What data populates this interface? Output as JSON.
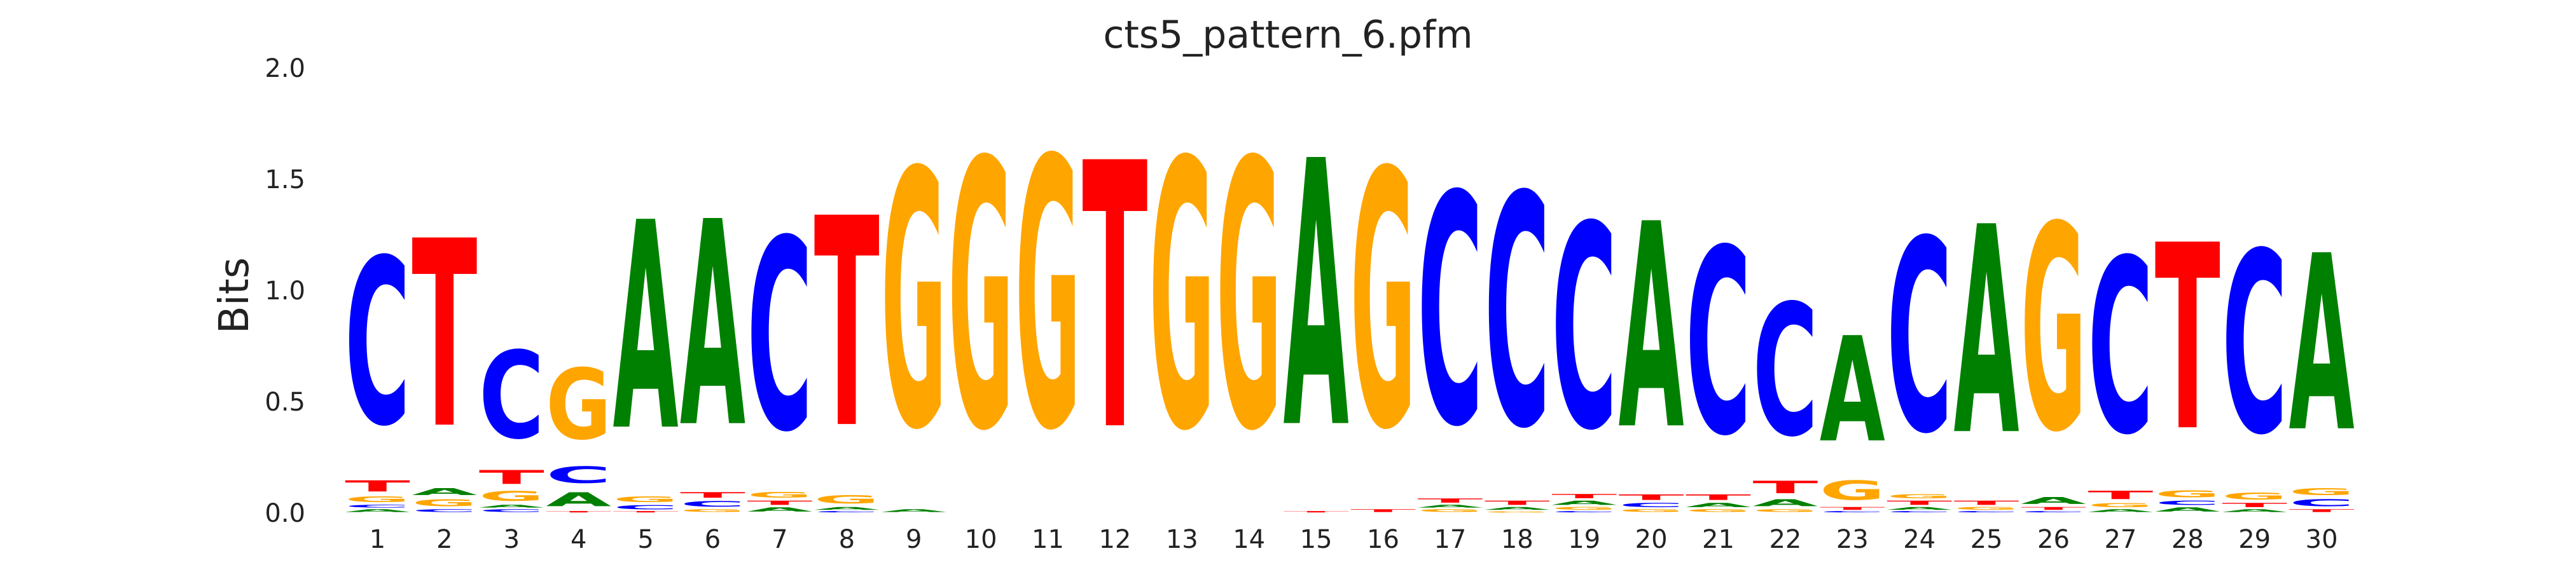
{
  "chart_data": {
    "type": "sequence-logo",
    "title": "cts5_pattern_6.pfm",
    "xlabel": "",
    "ylabel": "Bits",
    "ylim": [
      0,
      2.0
    ],
    "yticks": [
      "0.0",
      "0.5",
      "1.0",
      "1.5",
      "2.0"
    ],
    "positions": [
      "1",
      "2",
      "3",
      "4",
      "5",
      "6",
      "7",
      "8",
      "9",
      "10",
      "11",
      "12",
      "13",
      "14",
      "15",
      "16",
      "17",
      "18",
      "19",
      "20",
      "21",
      "22",
      "23",
      "24",
      "25",
      "26",
      "27",
      "28",
      "29",
      "30"
    ],
    "colors": {
      "A": "#008000",
      "C": "#0000ff",
      "G": "#ffa500",
      "T": "#ff0000"
    },
    "columns": [
      [
        {
          "base": "A",
          "bits": 0.02
        },
        {
          "base": "C",
          "bits": 0.02
        },
        {
          "base": "G",
          "bits": 0.04
        },
        {
          "base": "T",
          "bits": 0.08
        },
        {
          "base": "C",
          "bits": 1.2
        }
      ],
      [
        {
          "base": "C",
          "bits": 0.02
        },
        {
          "base": "G",
          "bits": 0.05
        },
        {
          "base": "A",
          "bits": 0.05
        },
        {
          "base": "T",
          "bits": 1.35
        }
      ],
      [
        {
          "base": "C",
          "bits": 0.02
        },
        {
          "base": "A",
          "bits": 0.02
        },
        {
          "base": "G",
          "bits": 0.07
        },
        {
          "base": "T",
          "bits": 0.1
        },
        {
          "base": "C",
          "bits": 0.63
        }
      ],
      [
        {
          "base": "T",
          "bits": 0.01
        },
        {
          "base": "A",
          "bits": 0.1
        },
        {
          "base": "C",
          "bits": 0.12
        },
        {
          "base": "G",
          "bits": 0.51
        }
      ],
      [
        {
          "base": "T",
          "bits": 0.01
        },
        {
          "base": "C",
          "bits": 0.03
        },
        {
          "base": "G",
          "bits": 0.04
        },
        {
          "base": "A",
          "bits": 1.5
        }
      ],
      [
        {
          "base": "G",
          "bits": 0.02
        },
        {
          "base": "C",
          "bits": 0.04
        },
        {
          "base": "T",
          "bits": 0.04
        },
        {
          "base": "A",
          "bits": 1.48
        }
      ],
      [
        {
          "base": "A",
          "bits": 0.03
        },
        {
          "base": "T",
          "bits": 0.03
        },
        {
          "base": "G",
          "bits": 0.04
        },
        {
          "base": "C",
          "bits": 1.38
        }
      ],
      [
        {
          "base": "C",
          "bits": 0.01
        },
        {
          "base": "A",
          "bits": 0.02
        },
        {
          "base": "G",
          "bits": 0.06
        },
        {
          "base": "T",
          "bits": 1.51
        }
      ],
      [
        {
          "base": "A",
          "bits": 0.02
        },
        {
          "base": "G",
          "bits": 1.85
        }
      ],
      [
        {
          "base": "G",
          "bits": 1.93
        }
      ],
      [
        {
          "base": "G",
          "bits": 1.94
        }
      ],
      [
        {
          "base": "T",
          "bits": 1.92
        }
      ],
      [
        {
          "base": "G",
          "bits": 1.93
        }
      ],
      [
        {
          "base": "G",
          "bits": 1.93
        }
      ],
      [
        {
          "base": "T",
          "bits": 0.01
        },
        {
          "base": "A",
          "bits": 1.92
        }
      ],
      [
        {
          "base": "T",
          "bits": 0.02
        },
        {
          "base": "G",
          "bits": 1.85
        }
      ],
      [
        {
          "base": "G",
          "bits": 0.02
        },
        {
          "base": "A",
          "bits": 0.02
        },
        {
          "base": "T",
          "bits": 0.03
        },
        {
          "base": "C",
          "bits": 1.66
        }
      ],
      [
        {
          "base": "G",
          "bits": 0.01
        },
        {
          "base": "A",
          "bits": 0.02
        },
        {
          "base": "T",
          "bits": 0.03
        },
        {
          "base": "C",
          "bits": 1.67
        }
      ],
      [
        {
          "base": "C",
          "bits": 0.01
        },
        {
          "base": "G",
          "bits": 0.02
        },
        {
          "base": "A",
          "bits": 0.03
        },
        {
          "base": "T",
          "bits": 0.03
        },
        {
          "base": "C",
          "bits": 1.47
        }
      ],
      [
        {
          "base": "G",
          "bits": 0.02
        },
        {
          "base": "C",
          "bits": 0.03
        },
        {
          "base": "T",
          "bits": 0.04
        },
        {
          "base": "A",
          "bits": 1.48
        }
      ],
      [
        {
          "base": "G",
          "bits": 0.02
        },
        {
          "base": "A",
          "bits": 0.03
        },
        {
          "base": "T",
          "bits": 0.04
        },
        {
          "base": "C",
          "bits": 1.34
        }
      ],
      [
        {
          "base": "G",
          "bits": 0.02
        },
        {
          "base": "A",
          "bits": 0.05
        },
        {
          "base": "T",
          "bits": 0.09
        },
        {
          "base": "C",
          "bits": 0.95
        }
      ],
      [
        {
          "base": "C",
          "bits": 0.01
        },
        {
          "base": "T",
          "bits": 0.02
        },
        {
          "base": "G",
          "bits": 0.14
        },
        {
          "base": "A",
          "bits": 0.76
        }
      ],
      [
        {
          "base": "C",
          "bits": 0.01
        },
        {
          "base": "A",
          "bits": 0.02
        },
        {
          "base": "T",
          "bits": 0.03
        },
        {
          "base": "G",
          "bits": 0.03
        },
        {
          "base": "C",
          "bits": 1.39
        }
      ],
      [
        {
          "base": "C",
          "bits": 0.01
        },
        {
          "base": "G",
          "bits": 0.02
        },
        {
          "base": "T",
          "bits": 0.03
        },
        {
          "base": "A",
          "bits": 1.5
        }
      ],
      [
        {
          "base": "C",
          "bits": 0.01
        },
        {
          "base": "T",
          "bits": 0.02
        },
        {
          "base": "A",
          "bits": 0.05
        },
        {
          "base": "G",
          "bits": 1.48
        }
      ],
      [
        {
          "base": "A",
          "bits": 0.02
        },
        {
          "base": "G",
          "bits": 0.03
        },
        {
          "base": "T",
          "bits": 0.06
        },
        {
          "base": "C",
          "bits": 1.26
        }
      ],
      [
        {
          "base": "A",
          "bits": 0.03
        },
        {
          "base": "C",
          "bits": 0.03
        },
        {
          "base": "G",
          "bits": 0.05
        },
        {
          "base": "T",
          "bits": 1.34
        }
      ],
      [
        {
          "base": "A",
          "bits": 0.02
        },
        {
          "base": "T",
          "bits": 0.03
        },
        {
          "base": "G",
          "bits": 0.05
        },
        {
          "base": "C",
          "bits": 1.31
        }
      ],
      [
        {
          "base": "T",
          "bits": 0.02
        },
        {
          "base": "C",
          "bits": 0.05
        },
        {
          "base": "G",
          "bits": 0.05
        },
        {
          "base": "A",
          "bits": 1.27
        }
      ]
    ]
  }
}
